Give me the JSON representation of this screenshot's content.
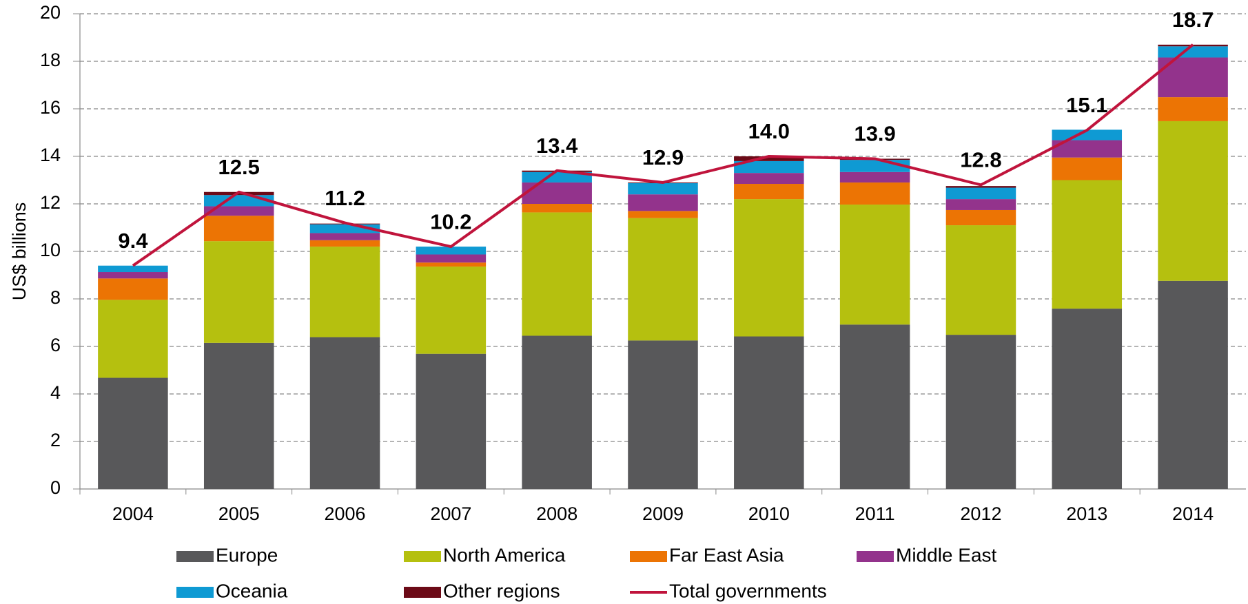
{
  "chart_data": {
    "type": "bar",
    "stacked": true,
    "y_label": "US$ billions",
    "categories": [
      "2004",
      "2005",
      "2006",
      "2007",
      "2008",
      "2009",
      "2010",
      "2011",
      "2012",
      "2013",
      "2014"
    ],
    "ylim": [
      0,
      20
    ],
    "yticks": [
      0,
      2,
      4,
      6,
      8,
      10,
      12,
      14,
      16,
      18,
      20
    ],
    "grid": true,
    "legend": "bottom",
    "series": [
      {
        "name": "Europe",
        "color": "#58585a",
        "values": [
          4.68,
          6.15,
          6.39,
          5.69,
          6.45,
          6.25,
          6.42,
          6.92,
          6.49,
          7.59,
          8.76
        ]
      },
      {
        "name": "North America",
        "color": "#b5c00f",
        "values": [
          3.28,
          4.28,
          3.81,
          3.67,
          5.19,
          5.15,
          5.78,
          5.05,
          4.61,
          5.41,
          6.72
        ]
      },
      {
        "name": "Far East Asia",
        "color": "#ec7404",
        "values": [
          0.9,
          1.07,
          0.27,
          0.17,
          0.36,
          0.3,
          0.64,
          0.93,
          0.64,
          0.95,
          1.01
        ]
      },
      {
        "name": "Middle East",
        "color": "#93338c",
        "values": [
          0.27,
          0.4,
          0.3,
          0.34,
          0.9,
          0.7,
          0.46,
          0.44,
          0.46,
          0.73,
          1.67
        ]
      },
      {
        "name": "Oceania",
        "color": "#0f9ad3",
        "values": [
          0.27,
          0.47,
          0.37,
          0.33,
          0.44,
          0.47,
          0.5,
          0.51,
          0.48,
          0.44,
          0.47
        ]
      },
      {
        "name": "Other regions",
        "color": "#6c0a17",
        "values": [
          0,
          0.13,
          0.03,
          0,
          0.06,
          0.03,
          0.2,
          0.05,
          0.07,
          0,
          0.07
        ]
      },
      {
        "name": "Total governments",
        "color": "#c0143c",
        "type": "line",
        "values": [
          9.4,
          12.5,
          11.2,
          10.2,
          13.4,
          12.9,
          14.0,
          13.9,
          12.8,
          15.1,
          18.7
        ],
        "value_labels": [
          "9.4",
          "12.5",
          "11.2",
          "10.2",
          "13.4",
          "12.9",
          "14.0",
          "13.9",
          "12.8",
          "15.1",
          "18.7"
        ]
      }
    ]
  }
}
